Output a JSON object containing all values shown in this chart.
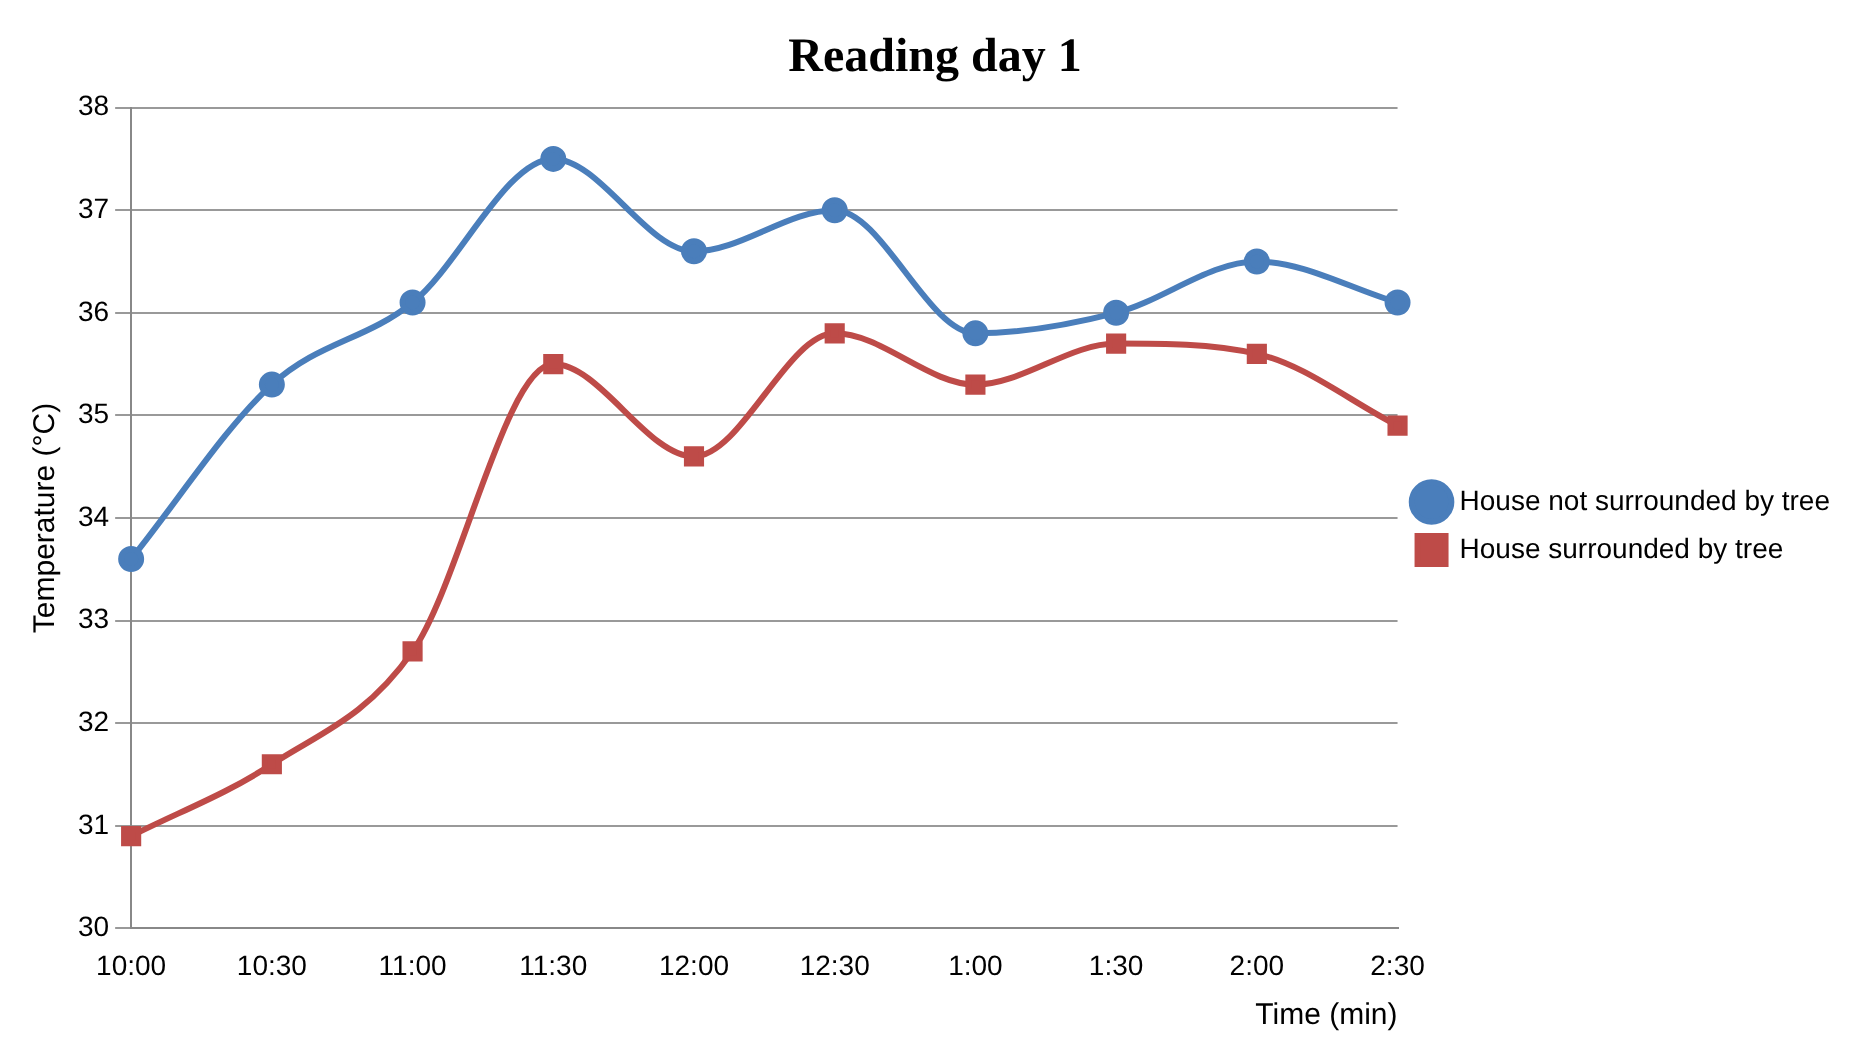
{
  "chart_data": {
    "type": "line",
    "title": "Reading day 1",
    "xlabel": "Time (min)",
    "ylabel": "Temperature (°C)",
    "categories": [
      "10:00",
      "10:30",
      "11:00",
      "11:30",
      "12:00",
      "12:30",
      "1:00",
      "1:30",
      "2:00",
      "2:30"
    ],
    "series": [
      {
        "name": "House not surrounded by tree",
        "color": "#4a7ebb",
        "marker": "circle",
        "values": [
          33.6,
          35.3,
          36.1,
          37.5,
          36.6,
          37.0,
          35.8,
          36.0,
          36.5,
          36.1
        ]
      },
      {
        "name": "House surrounded by tree",
        "color": "#be4b48",
        "marker": "square",
        "values": [
          30.9,
          31.6,
          32.7,
          35.5,
          34.6,
          35.8,
          35.3,
          35.7,
          35.6,
          34.9
        ]
      }
    ],
    "ylim": [
      30,
      38
    ],
    "yticks": [
      30,
      31,
      32,
      33,
      34,
      35,
      36,
      37,
      38
    ],
    "grid": "y",
    "legend": "right"
  }
}
